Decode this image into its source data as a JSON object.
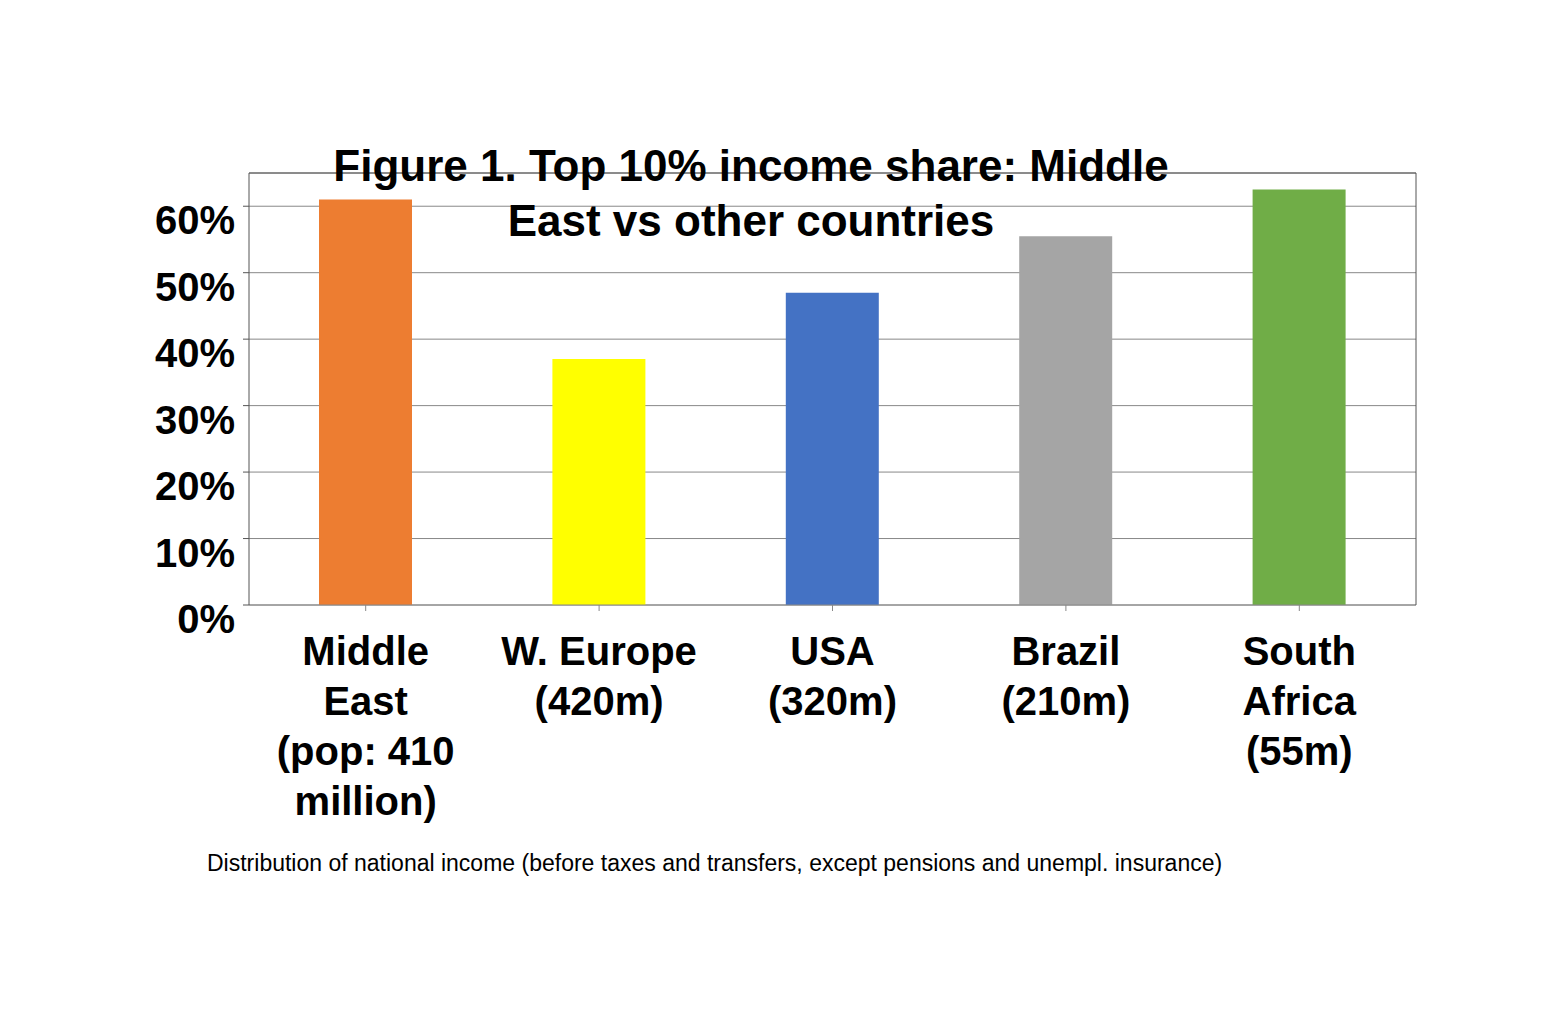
{
  "chart_data": {
    "type": "bar",
    "title": "Figure 1. Top 10% income share: Middle\nEast vs other countries",
    "categories": [
      "Middle\nEast\n(pop: 410\nmillion)",
      "W. Europe\n(420m)",
      "USA\n(320m)",
      "Brazil\n(210m)",
      "South\nAfrica\n(55m)"
    ],
    "values": [
      61,
      37,
      47,
      55.5,
      62.5
    ],
    "colors": [
      "#ed7d31",
      "#ffff00",
      "#4472c4",
      "#a5a5a5",
      "#70ad47"
    ],
    "ylim": [
      0,
      65
    ],
    "yticks": [
      {
        "value": 0,
        "label": "0%"
      },
      {
        "value": 10,
        "label": "10%"
      },
      {
        "value": 20,
        "label": "20%"
      },
      {
        "value": 30,
        "label": "30%"
      },
      {
        "value": 40,
        "label": "40%"
      },
      {
        "value": 50,
        "label": "50%"
      },
      {
        "value": 60,
        "label": "60%"
      }
    ],
    "grid": true,
    "caption": "Distribution of national income (before taxes and transfers, except pensions and unempl. insurance)"
  }
}
